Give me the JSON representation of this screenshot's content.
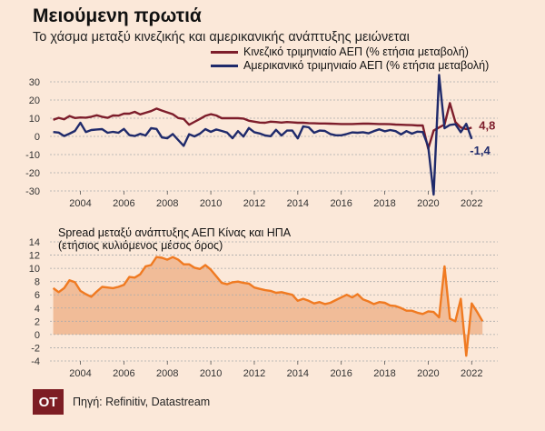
{
  "header": {
    "title": "Μειούμενη πρωτιά",
    "subtitle": "Το χάσμα μεταξύ κινεζικής και αμερικανικής ανάπτυξης μειώνεται"
  },
  "colors": {
    "china": "#7d1d2b",
    "usa": "#1f2a6b",
    "spread_line": "#f07a21",
    "spread_fill": "#efb48c",
    "grid": "#aaaaaa"
  },
  "footer": {
    "logo": "OT",
    "source": "Πηγή: Refinitiv, Datastream"
  },
  "chart_data": [
    {
      "type": "line",
      "legend_placement": "top-right",
      "x_ticks": [
        "2004",
        "2006",
        "2008",
        "2010",
        "2012",
        "2014",
        "2016",
        "2018",
        "2020",
        "2022"
      ],
      "y_ticks": [
        "30",
        "20",
        "10",
        "0",
        "-10",
        "-20",
        "-30"
      ],
      "xlim": [
        2002.6,
        2023.2
      ],
      "ylim": [
        -30,
        30
      ],
      "grid": true,
      "end_labels": {
        "china": "4,8",
        "usa": "-1,4"
      },
      "series": [
        {
          "name": "Κινεζικό τριμηνιαίο ΑΕΠ (% ετήσια μεταβολή)",
          "key": "china",
          "points": [
            [
              2002.75,
              9.1
            ],
            [
              2003.0,
              10.2
            ],
            [
              2003.25,
              9.4
            ],
            [
              2003.5,
              11.2
            ],
            [
              2003.75,
              10.1
            ],
            [
              2004.0,
              10.4
            ],
            [
              2004.25,
              10.3
            ],
            [
              2004.5,
              10.8
            ],
            [
              2004.75,
              11.6
            ],
            [
              2005.0,
              10.8
            ],
            [
              2005.25,
              10.2
            ],
            [
              2005.5,
              11.5
            ],
            [
              2005.75,
              11.4
            ],
            [
              2006.0,
              12.5
            ],
            [
              2006.25,
              12.5
            ],
            [
              2006.5,
              13.5
            ],
            [
              2006.75,
              12.1
            ],
            [
              2007.0,
              13.0
            ],
            [
              2007.25,
              13.9
            ],
            [
              2007.5,
              15.3
            ],
            [
              2007.75,
              14.2
            ],
            [
              2008.0,
              13.2
            ],
            [
              2008.25,
              12.2
            ],
            [
              2008.5,
              10.1
            ],
            [
              2008.75,
              9.6
            ],
            [
              2009.0,
              6.4
            ],
            [
              2009.25,
              8.0
            ],
            [
              2009.5,
              9.6
            ],
            [
              2009.75,
              11.3
            ],
            [
              2010.0,
              12.2
            ],
            [
              2010.25,
              11.5
            ],
            [
              2010.5,
              10.0
            ],
            [
              2010.75,
              10.0
            ],
            [
              2011.0,
              10.0
            ],
            [
              2011.25,
              10.0
            ],
            [
              2011.5,
              9.8
            ],
            [
              2011.75,
              8.6
            ],
            [
              2012.0,
              8.1
            ],
            [
              2012.25,
              7.6
            ],
            [
              2012.5,
              7.5
            ],
            [
              2012.75,
              8.1
            ],
            [
              2013.0,
              7.9
            ],
            [
              2013.25,
              7.6
            ],
            [
              2013.5,
              7.9
            ],
            [
              2013.75,
              7.7
            ],
            [
              2014.0,
              7.5
            ],
            [
              2014.25,
              7.5
            ],
            [
              2014.5,
              7.3
            ],
            [
              2014.75,
              7.2
            ],
            [
              2015.0,
              7.1
            ],
            [
              2015.25,
              7.1
            ],
            [
              2015.5,
              7.0
            ],
            [
              2015.75,
              6.9
            ],
            [
              2016.0,
              6.8
            ],
            [
              2016.25,
              6.8
            ],
            [
              2016.5,
              6.8
            ],
            [
              2016.75,
              6.9
            ],
            [
              2017.0,
              7.0
            ],
            [
              2017.25,
              7.0
            ],
            [
              2017.5,
              6.9
            ],
            [
              2017.75,
              6.8
            ],
            [
              2018.0,
              6.8
            ],
            [
              2018.25,
              6.7
            ],
            [
              2018.5,
              6.5
            ],
            [
              2018.75,
              6.4
            ],
            [
              2019.0,
              6.3
            ],
            [
              2019.25,
              6.2
            ],
            [
              2019.5,
              6.0
            ],
            [
              2019.75,
              6.0
            ],
            [
              2020.0,
              -6.8
            ],
            [
              2020.25,
              3.2
            ],
            [
              2020.5,
              4.9
            ],
            [
              2020.75,
              6.5
            ],
            [
              2021.0,
              18.3
            ],
            [
              2021.25,
              7.9
            ],
            [
              2021.5,
              4.9
            ],
            [
              2021.75,
              4.0
            ],
            [
              2022.0,
              4.8
            ]
          ]
        },
        {
          "name": "Αμερικανικό τριμηνιαίο ΑΕΠ (% ετήσια μεταβολή)",
          "key": "usa",
          "points": [
            [
              2002.75,
              2.4
            ],
            [
              2003.0,
              2.1
            ],
            [
              2003.25,
              0.2
            ],
            [
              2003.5,
              1.5
            ],
            [
              2003.75,
              3.0
            ],
            [
              2004.0,
              7.5
            ],
            [
              2004.25,
              2.4
            ],
            [
              2004.5,
              3.5
            ],
            [
              2004.75,
              3.8
            ],
            [
              2005.0,
              4.0
            ],
            [
              2005.25,
              2.0
            ],
            [
              2005.5,
              2.5
            ],
            [
              2005.75,
              2.0
            ],
            [
              2006.0,
              4.1
            ],
            [
              2006.25,
              0.7
            ],
            [
              2006.5,
              0.2
            ],
            [
              2006.75,
              1.4
            ],
            [
              2007.0,
              0.5
            ],
            [
              2007.25,
              4.5
            ],
            [
              2007.5,
              4.1
            ],
            [
              2007.75,
              -0.6
            ],
            [
              2008.0,
              -1.0
            ],
            [
              2008.25,
              1.3
            ],
            [
              2008.5,
              -2.0
            ],
            [
              2008.75,
              -5.2
            ],
            [
              2009.0,
              1.2
            ],
            [
              2009.25,
              0.0
            ],
            [
              2009.5,
              1.5
            ],
            [
              2009.75,
              4.0
            ],
            [
              2010.0,
              2.5
            ],
            [
              2010.25,
              3.8
            ],
            [
              2010.5,
              3.0
            ],
            [
              2010.75,
              2.1
            ],
            [
              2011.0,
              -1.0
            ],
            [
              2011.25,
              2.9
            ],
            [
              2011.5,
              -0.1
            ],
            [
              2011.75,
              4.6
            ],
            [
              2012.0,
              2.3
            ],
            [
              2012.25,
              1.6
            ],
            [
              2012.5,
              0.5
            ],
            [
              2012.75,
              0.1
            ],
            [
              2013.0,
              3.6
            ],
            [
              2013.25,
              0.5
            ],
            [
              2013.5,
              3.2
            ],
            [
              2013.75,
              3.2
            ],
            [
              2014.0,
              -1.1
            ],
            [
              2014.25,
              5.5
            ],
            [
              2014.5,
              5.0
            ],
            [
              2014.75,
              2.0
            ],
            [
              2015.0,
              3.2
            ],
            [
              2015.25,
              3.0
            ],
            [
              2015.5,
              1.3
            ],
            [
              2015.75,
              0.6
            ],
            [
              2016.0,
              0.6
            ],
            [
              2016.25,
              1.3
            ],
            [
              2016.5,
              2.2
            ],
            [
              2016.75,
              2.0
            ],
            [
              2017.0,
              2.3
            ],
            [
              2017.25,
              1.7
            ],
            [
              2017.5,
              2.9
            ],
            [
              2017.75,
              3.9
            ],
            [
              2018.0,
              2.8
            ],
            [
              2018.25,
              3.5
            ],
            [
              2018.5,
              2.9
            ],
            [
              2018.75,
              1.1
            ],
            [
              2019.0,
              2.9
            ],
            [
              2019.25,
              1.5
            ],
            [
              2019.5,
              2.6
            ],
            [
              2019.75,
              2.4
            ],
            [
              2020.0,
              -5.5
            ],
            [
              2020.25,
              -32.0
            ],
            [
              2020.5,
              33.8
            ],
            [
              2020.75,
              4.5
            ],
            [
              2021.0,
              6.3
            ],
            [
              2021.25,
              6.7
            ],
            [
              2021.5,
              2.3
            ],
            [
              2021.75,
              6.9
            ],
            [
              2022.0,
              -1.4
            ]
          ]
        }
      ]
    },
    {
      "type": "area",
      "title_lines": [
        "Spread μεταξύ ανάπτυξης ΑΕΠ Κίνας και ΗΠΑ",
        "(ετήσιος κυλιόμενος μέσος όρος)"
      ],
      "x_ticks": [
        "2004",
        "2006",
        "2008",
        "2010",
        "2012",
        "2014",
        "2016",
        "2018",
        "2020",
        "2022"
      ],
      "y_ticks": [
        "14",
        "12",
        "10",
        "8",
        "6",
        "4",
        "2",
        "0",
        "-2",
        "-4"
      ],
      "xlim": [
        2002.6,
        2023.2
      ],
      "ylim": [
        -4,
        14
      ],
      "grid": true,
      "points": [
        [
          2002.75,
          7.0
        ],
        [
          2003.0,
          6.4
        ],
        [
          2003.25,
          7.0
        ],
        [
          2003.5,
          8.2
        ],
        [
          2003.75,
          7.9
        ],
        [
          2004.0,
          6.6
        ],
        [
          2004.25,
          6.1
        ],
        [
          2004.5,
          5.7
        ],
        [
          2004.75,
          6.5
        ],
        [
          2005.0,
          7.2
        ],
        [
          2005.25,
          7.1
        ],
        [
          2005.5,
          7.0
        ],
        [
          2005.75,
          7.2
        ],
        [
          2006.0,
          7.5
        ],
        [
          2006.25,
          8.7
        ],
        [
          2006.5,
          8.6
        ],
        [
          2006.75,
          9.1
        ],
        [
          2007.0,
          10.3
        ],
        [
          2007.25,
          10.5
        ],
        [
          2007.5,
          11.7
        ],
        [
          2007.75,
          11.6
        ],
        [
          2008.0,
          11.3
        ],
        [
          2008.25,
          11.7
        ],
        [
          2008.5,
          11.3
        ],
        [
          2008.75,
          10.6
        ],
        [
          2009.0,
          10.6
        ],
        [
          2009.25,
          10.1
        ],
        [
          2009.5,
          9.9
        ],
        [
          2009.75,
          10.5
        ],
        [
          2010.0,
          9.8
        ],
        [
          2010.25,
          8.8
        ],
        [
          2010.5,
          7.8
        ],
        [
          2010.75,
          7.6
        ],
        [
          2011.0,
          7.9
        ],
        [
          2011.25,
          8.0
        ],
        [
          2011.5,
          7.8
        ],
        [
          2011.75,
          7.7
        ],
        [
          2012.0,
          7.1
        ],
        [
          2012.25,
          6.9
        ],
        [
          2012.5,
          6.7
        ],
        [
          2012.75,
          6.6
        ],
        [
          2013.0,
          6.3
        ],
        [
          2013.25,
          6.4
        ],
        [
          2013.5,
          6.2
        ],
        [
          2013.75,
          6.0
        ],
        [
          2014.0,
          5.1
        ],
        [
          2014.25,
          5.4
        ],
        [
          2014.5,
          5.1
        ],
        [
          2014.75,
          4.7
        ],
        [
          2015.0,
          4.9
        ],
        [
          2015.25,
          4.6
        ],
        [
          2015.5,
          4.8
        ],
        [
          2015.75,
          5.2
        ],
        [
          2016.0,
          5.6
        ],
        [
          2016.25,
          6.0
        ],
        [
          2016.5,
          5.6
        ],
        [
          2016.75,
          6.1
        ],
        [
          2017.0,
          5.3
        ],
        [
          2017.25,
          5.0
        ],
        [
          2017.5,
          4.6
        ],
        [
          2017.75,
          4.9
        ],
        [
          2018.0,
          4.8
        ],
        [
          2018.25,
          4.4
        ],
        [
          2018.5,
          4.3
        ],
        [
          2018.75,
          4.0
        ],
        [
          2019.0,
          3.6
        ],
        [
          2019.25,
          3.6
        ],
        [
          2019.5,
          3.3
        ],
        [
          2019.75,
          3.1
        ],
        [
          2020.0,
          3.5
        ],
        [
          2020.25,
          3.4
        ],
        [
          2020.5,
          2.6
        ],
        [
          2020.75,
          10.3
        ],
        [
          2021.0,
          2.4
        ],
        [
          2021.25,
          2.0
        ],
        [
          2021.5,
          5.4
        ],
        [
          2021.75,
          -3.2
        ],
        [
          2022.0,
          4.7
        ],
        [
          2022.25,
          3.4
        ],
        [
          2022.5,
          2.0
        ]
      ]
    }
  ]
}
